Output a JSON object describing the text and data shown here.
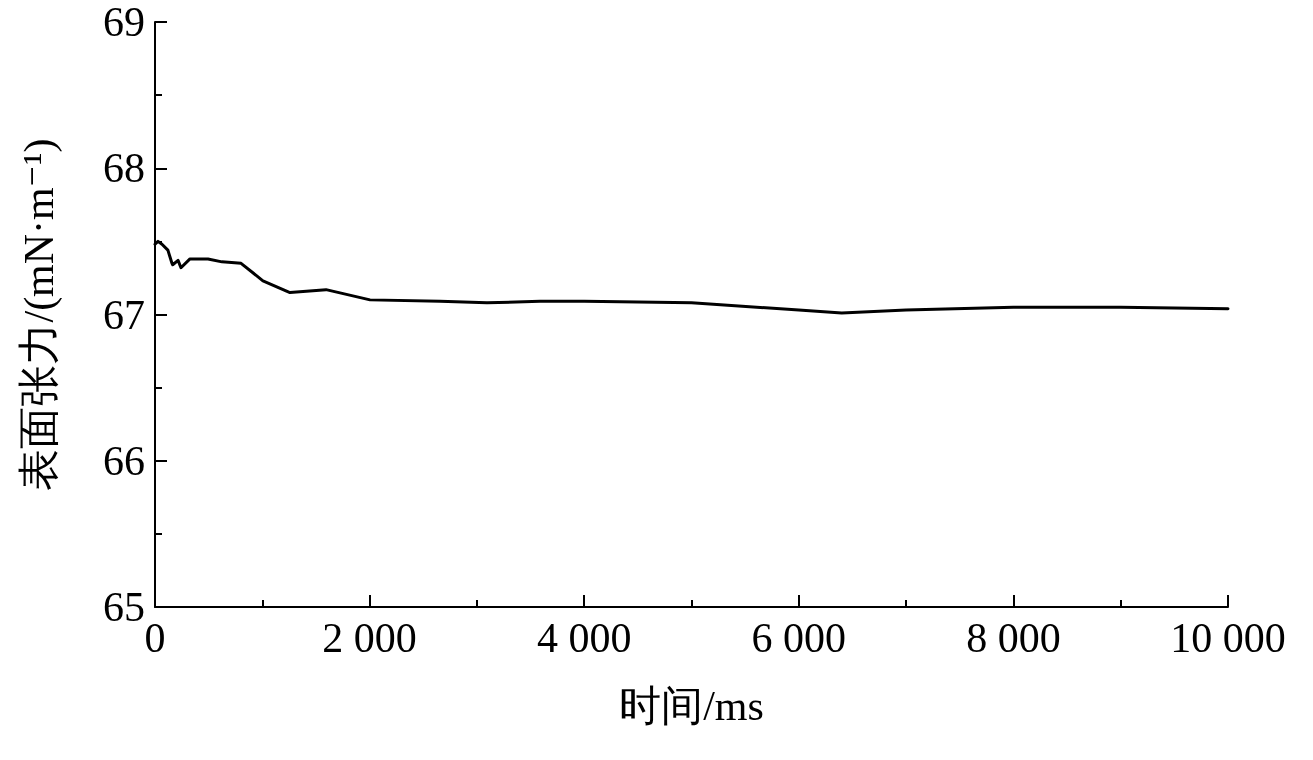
{
  "chart_data": {
    "type": "line",
    "xlabel": "时间/ms",
    "ylabel": "表面张力/(mN·m⁻¹)",
    "x": [
      0,
      28,
      65,
      120,
      158,
      165,
      215,
      242,
      326,
      494,
      624,
      802,
      1006,
      1258,
      1594,
      2004,
      2656,
      3094,
      3588,
      4000,
      5000,
      6000,
      6400,
      7000,
      8000,
      9000,
      10000
    ],
    "series": [
      {
        "color": "#000000",
        "values": [
          67.48,
          67.5,
          67.48,
          67.44,
          67.35,
          67.34,
          67.37,
          67.32,
          67.38,
          67.38,
          67.36,
          67.35,
          67.23,
          67.15,
          67.17,
          67.1,
          67.09,
          67.08,
          67.09,
          67.09,
          67.08,
          67.03,
          67.01,
          67.03,
          67.05,
          67.05,
          67.04
        ]
      }
    ],
    "xlim": [
      0,
      10000
    ],
    "ylim": [
      65,
      69
    ],
    "xticks": [
      0,
      {
        "value": 2000,
        "label": "2 000"
      },
      {
        "value": 4000,
        "label": "4 000"
      },
      {
        "value": 6000,
        "label": "6 000"
      },
      {
        "value": 8000,
        "label": "8 000"
      },
      {
        "value": 10000,
        "label": "10 000"
      }
    ],
    "yticks": [
      65,
      66,
      67,
      68,
      69
    ],
    "grid": false,
    "marker": "none",
    "line_style": "solid"
  }
}
